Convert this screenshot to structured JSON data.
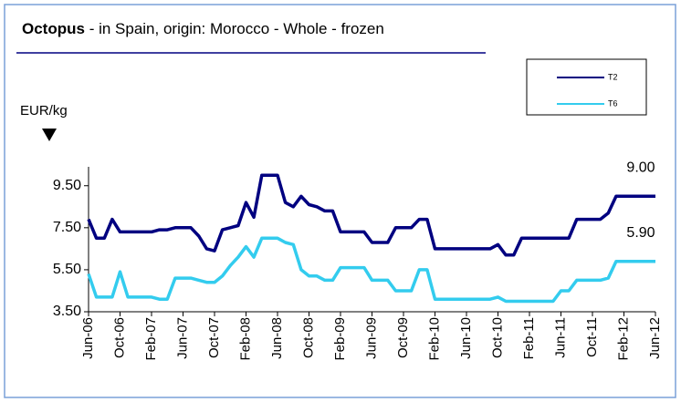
{
  "chart_data": {
    "type": "line",
    "title": "Octopus",
    "subtitle": "- in Spain, origin: Morocco - Whole - frozen",
    "y_label": "EUR/kg",
    "legend": "top-right",
    "categories": [
      "Jun-06",
      null,
      null,
      null,
      "Oct-06",
      null,
      null,
      null,
      "Feb-07",
      null,
      null,
      null,
      "Jun-07",
      null,
      null,
      null,
      "Oct-07",
      null,
      null,
      null,
      "Feb-08",
      null,
      null,
      null,
      "Jun-08",
      null,
      null,
      null,
      "Oct-08",
      null,
      null,
      null,
      "Feb-09",
      null,
      null,
      null,
      "Jun-09",
      null,
      null,
      null,
      "Oct-09",
      null,
      null,
      null,
      "Feb-10",
      null,
      null,
      null,
      "Jun-10",
      null,
      null,
      null,
      "Oct-10",
      null,
      null,
      null,
      "Feb-11",
      null,
      null,
      null,
      "Jun-11",
      null,
      null,
      null,
      "Oct-11",
      null,
      null,
      null,
      "Feb-12",
      null,
      null,
      null,
      "Jun-12"
    ],
    "ylim": [
      3.5,
      10.4
    ],
    "yticks": [
      {
        "value": 3.5,
        "label": "3.50"
      },
      {
        "value": 5.5,
        "label": "5.50"
      },
      {
        "value": 7.5,
        "label": "7.50"
      },
      {
        "value": 9.5,
        "label": "9.50"
      }
    ],
    "series": [
      {
        "name": "T2",
        "color": "#000080",
        "end_label": "9.00",
        "values": [
          7.9,
          7.0,
          7.0,
          7.9,
          7.3,
          7.3,
          7.3,
          7.3,
          7.3,
          7.4,
          7.4,
          7.5,
          7.5,
          7.5,
          7.1,
          6.5,
          6.4,
          7.4,
          7.5,
          7.6,
          8.7,
          8.0,
          10.0,
          10.0,
          10.0,
          8.7,
          8.5,
          9.0,
          8.6,
          8.5,
          8.3,
          8.3,
          7.3,
          7.3,
          7.3,
          7.3,
          6.8,
          6.8,
          6.8,
          7.5,
          7.5,
          7.5,
          7.9,
          7.9,
          6.5,
          6.5,
          6.5,
          6.5,
          6.5,
          6.5,
          6.5,
          6.5,
          6.7,
          6.2,
          6.2,
          7.0,
          7.0,
          7.0,
          7.0,
          7.0,
          7.0,
          7.0,
          7.9,
          7.9,
          7.9,
          7.9,
          8.2,
          9.0,
          9.0,
          9.0,
          9.0,
          9.0,
          9.0
        ]
      },
      {
        "name": "T6",
        "color": "#33ccee",
        "end_label": "5.90",
        "values": [
          5.3,
          4.2,
          4.2,
          4.2,
          5.4,
          4.2,
          4.2,
          4.2,
          4.2,
          4.1,
          4.1,
          5.1,
          5.1,
          5.1,
          5.0,
          4.9,
          4.9,
          5.2,
          5.7,
          6.1,
          6.6,
          6.1,
          7.0,
          7.0,
          7.0,
          6.8,
          6.7,
          5.5,
          5.2,
          5.2,
          5.0,
          5.0,
          5.6,
          5.6,
          5.6,
          5.6,
          5.0,
          5.0,
          5.0,
          4.5,
          4.5,
          4.5,
          5.5,
          5.5,
          4.1,
          4.1,
          4.1,
          4.1,
          4.1,
          4.1,
          4.1,
          4.1,
          4.2,
          4.0,
          4.0,
          4.0,
          4.0,
          4.0,
          4.0,
          4.0,
          4.5,
          4.5,
          5.0,
          5.0,
          5.0,
          5.0,
          5.1,
          5.9,
          5.9,
          5.9,
          5.9,
          5.9,
          5.9
        ]
      }
    ]
  }
}
